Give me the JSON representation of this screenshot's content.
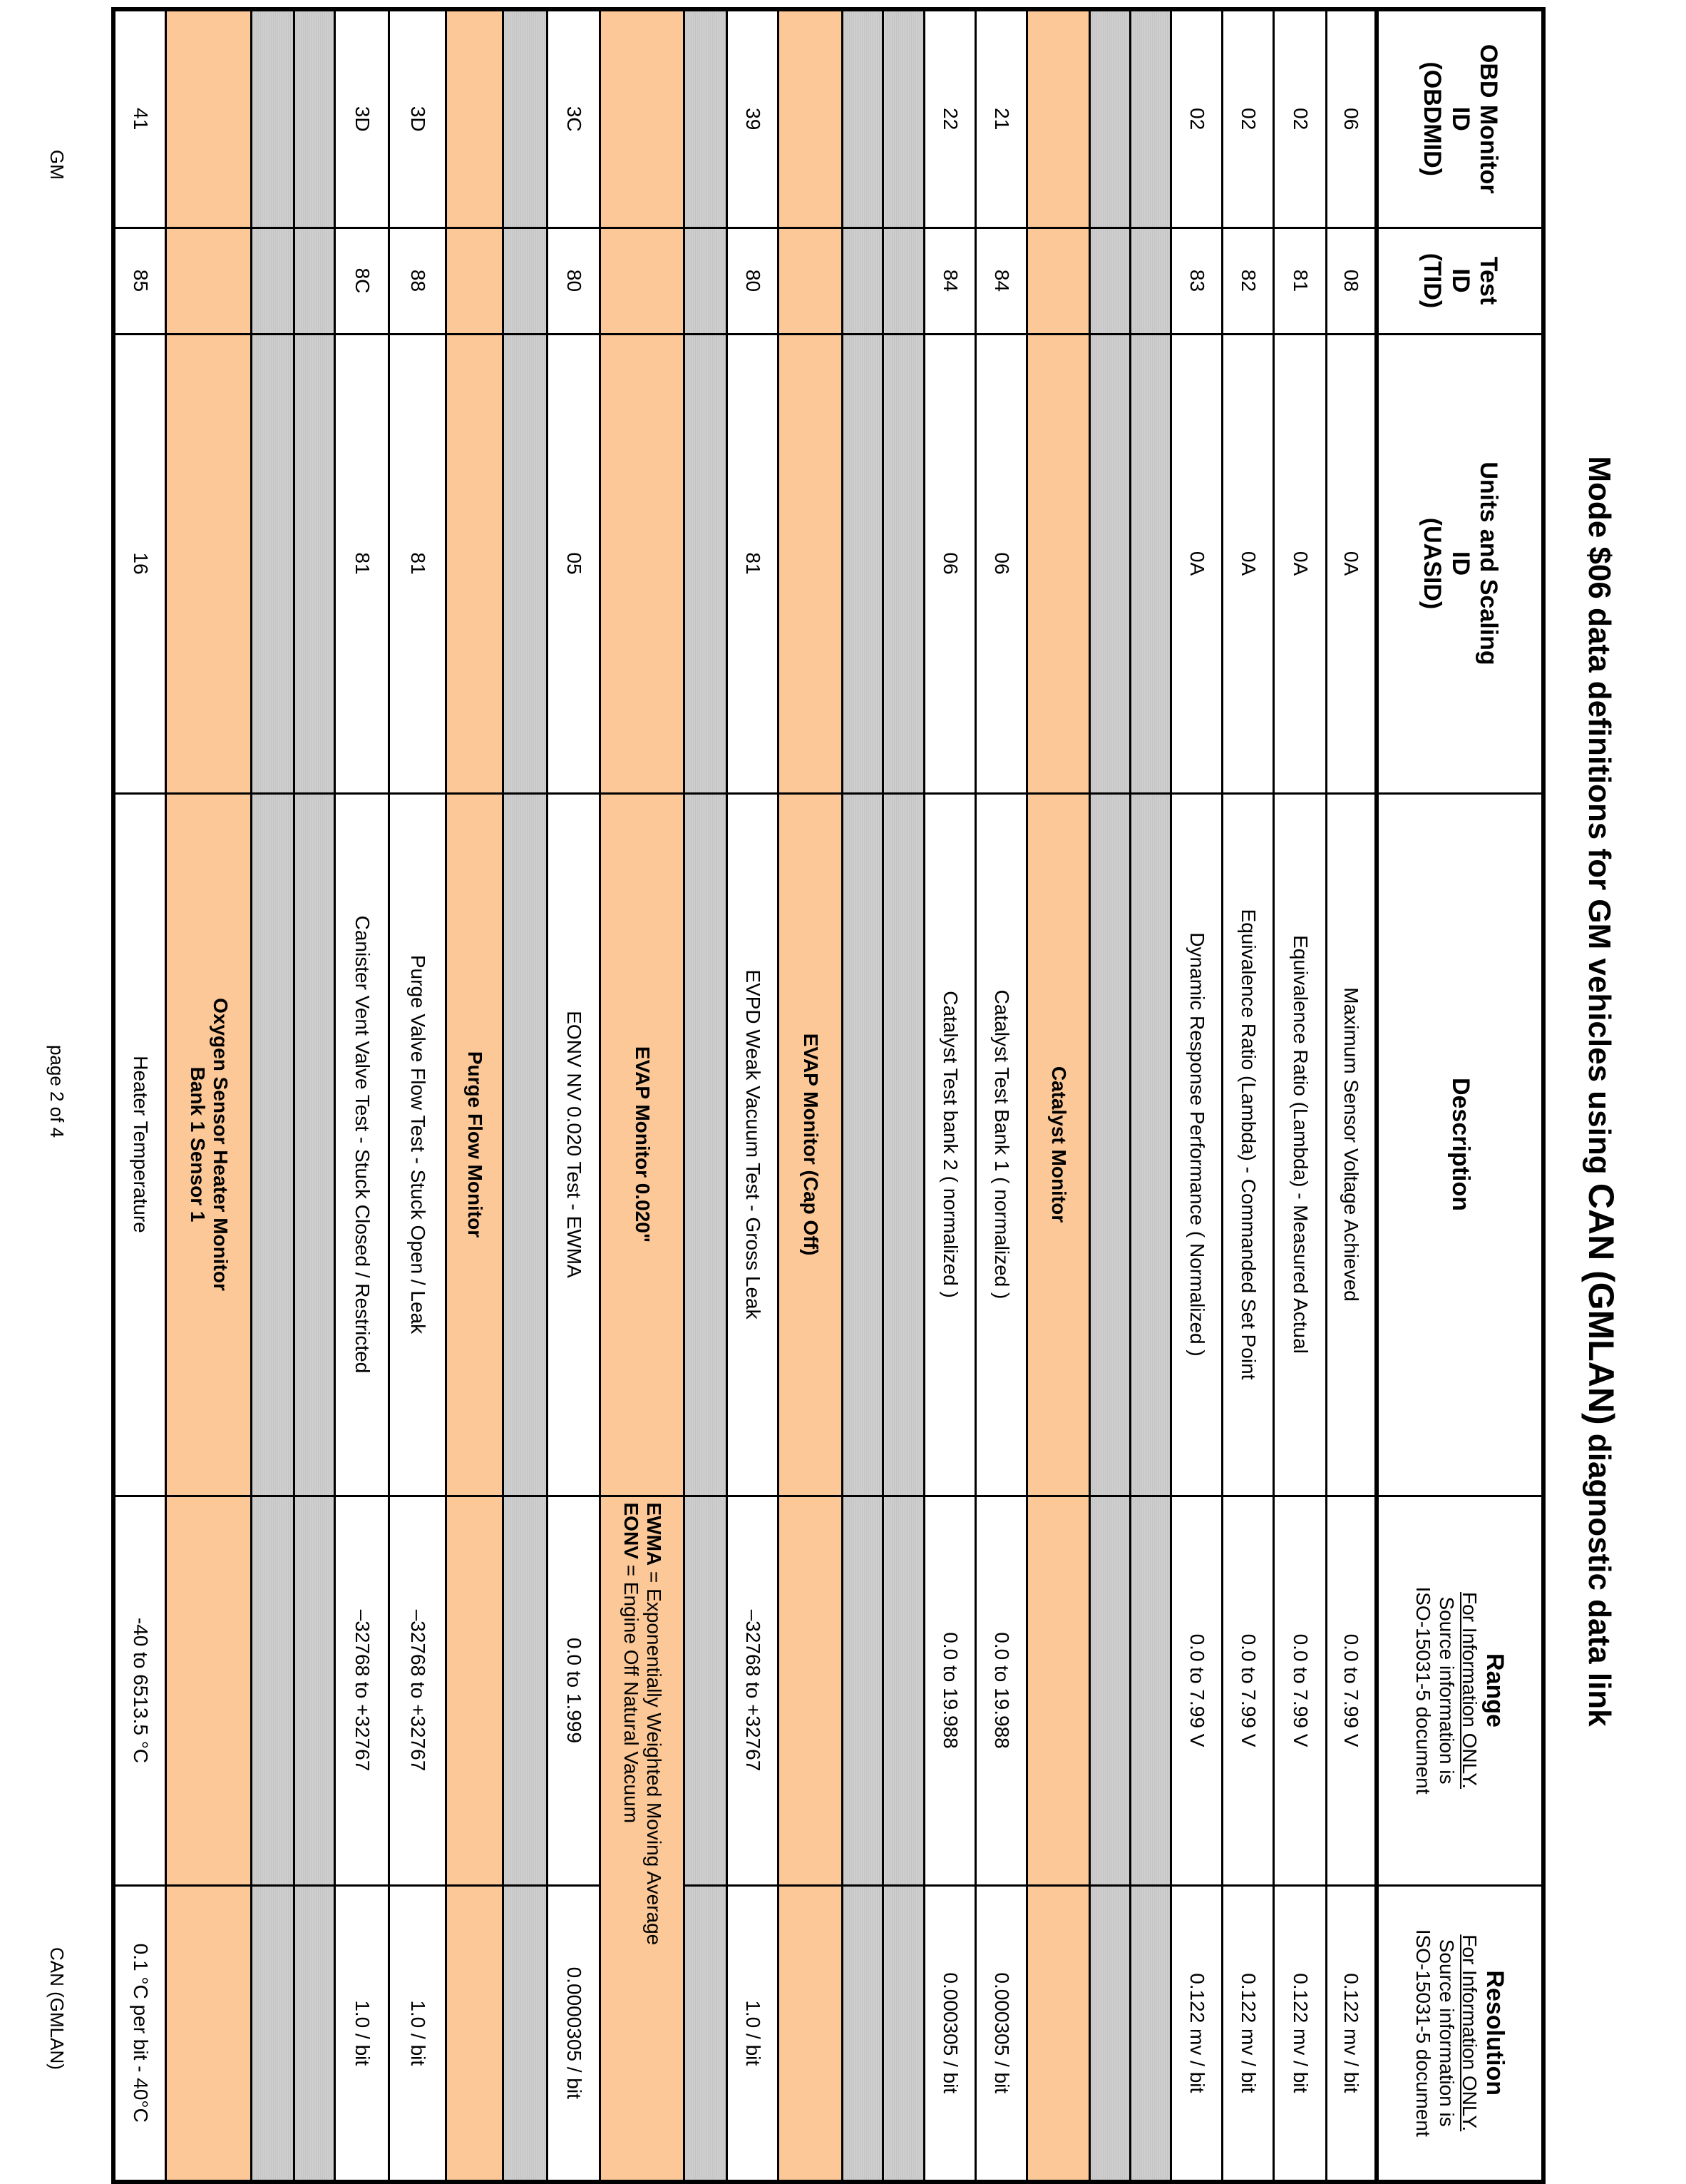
{
  "title": {
    "prefix": "Mode $06 data definitions for GM vehicles using ",
    "emph": "CAN (GMLAN)",
    "suffix": "  diagnostic data link"
  },
  "header": {
    "obdmid": [
      "OBD Monitor",
      "ID",
      "(OBDMID)"
    ],
    "tid": [
      "Test",
      "ID",
      "(TID)"
    ],
    "uasid": [
      "Units and Scaling",
      "ID",
      "(UASID)"
    ],
    "description": "Description",
    "range": {
      "title": "Range",
      "note": "For Information ONLY.",
      "line2": "Source information is",
      "line3": "ISO-15031-5 document"
    },
    "resolution": {
      "title": "Resolution",
      "note": "For Information ONLY.",
      "line2": "Source information is",
      "line3": "ISO-15031-5 document"
    }
  },
  "rows": [
    {
      "type": "data",
      "obdmid": "06",
      "tid": "08",
      "uasid": "0A",
      "description": "Maximum Sensor Voltage Achieved",
      "range": "0.0 to 7.99 V",
      "resolution": "0.122 mv / bit"
    },
    {
      "type": "data",
      "obdmid": "02",
      "tid": "81",
      "uasid": "0A",
      "description": "Equivalence Ratio (Lambda) - Measured Actual",
      "range": "0.0 to 7.99 V",
      "resolution": "0.122 mv / bit"
    },
    {
      "type": "data",
      "obdmid": "02",
      "tid": "82",
      "uasid": "0A",
      "description": "Equivalence Ratio (Lambda) - Commanded Set Point",
      "range": "0.0 to 7.99 V",
      "resolution": "0.122 mv / bit"
    },
    {
      "type": "data",
      "obdmid": "02",
      "tid": "83",
      "uasid": "0A",
      "description": "Dynamic Response Performance ( Normalized )",
      "range": "0.0 to 7.99 V",
      "resolution": "0.122 mv / bit"
    },
    {
      "type": "gray"
    },
    {
      "type": "gray"
    },
    {
      "type": "section",
      "description": "Catalyst Monitor"
    },
    {
      "type": "data",
      "obdmid": "21",
      "tid": "84",
      "uasid": "06",
      "description": "Catalyst Test Bank 1 ( normalized )",
      "range": "0.0 to 19.988",
      "resolution": "0.000305 / bit"
    },
    {
      "type": "data",
      "obdmid": "22",
      "tid": "84",
      "uasid": "06",
      "description": "Catalyst Test bank 2 ( normalized )",
      "range": "0.0 to 19.988",
      "resolution": "0.000305 / bit"
    },
    {
      "type": "gray"
    },
    {
      "type": "gray"
    },
    {
      "type": "section",
      "description": "EVAP Monitor (Cap Off)"
    },
    {
      "type": "data",
      "obdmid": "39",
      "tid": "80",
      "uasid": "81",
      "description": "EVPD Weak Vacuum Test - Gross Leak",
      "range": "–32768 to +32767",
      "resolution": "1.0 / bit"
    },
    {
      "type": "gray"
    },
    {
      "type": "section",
      "description": "EVAP Monitor 0.020\"",
      "note_bold1": "EWMA",
      "note_text1": " = Exponentially Weighted Moving Average",
      "note_bold2": "EONV",
      "note_text2": " = Engine Off Natural Vacuum"
    },
    {
      "type": "data",
      "obdmid": "3C",
      "tid": "80",
      "uasid": "05",
      "description": "EONV NV 0.020 Test - EWMA",
      "range": "0.0 to 1.999",
      "resolution": "0.0000305 / bit"
    },
    {
      "type": "gray"
    },
    {
      "type": "section",
      "description": "Purge Flow Monitor"
    },
    {
      "type": "data",
      "obdmid": "3D",
      "tid": "88",
      "uasid": "81",
      "description": "Purge Valve Flow Test - Stuck Open / Leak",
      "range": "–32768 to +32767",
      "resolution": "1.0 / bit"
    },
    {
      "type": "data",
      "obdmid": "3D",
      "tid": "8C",
      "uasid": "81",
      "description": "Canister Vent Valve Test - Stuck Closed / Restricted",
      "range": "–32768 to +32767",
      "resolution": "1.0 / bit"
    },
    {
      "type": "gray"
    },
    {
      "type": "gray"
    },
    {
      "type": "section",
      "description": "Oxygen Sensor Heater Monitor",
      "description2": "Bank 1 Sensor 1"
    },
    {
      "type": "data",
      "obdmid": "41",
      "tid": "85",
      "uasid": "16",
      "description": "Heater Temperature",
      "range": "-40 to 6513.5 °C",
      "resolution": "0.1 °C per bit - 40°C"
    }
  ],
  "footer": {
    "left": "GM",
    "center": "page 2 of 4",
    "right": "CAN  (GMLAN)"
  },
  "colors": {
    "section": "#fcc897",
    "gray": "#c4c4c4"
  }
}
